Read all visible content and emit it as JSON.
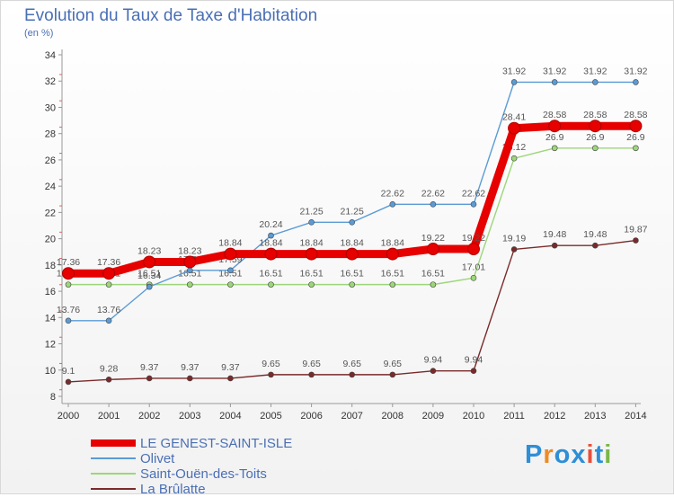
{
  "title": "Evolution du Taux de Taxe d'Habitation",
  "subtitle": "(en %)",
  "brand": {
    "letters": [
      "P",
      "r",
      "o",
      "x",
      "i",
      "t",
      "i"
    ],
    "colors": [
      "#2e8fd6",
      "#f08a24",
      "#2e8fd6",
      "#2e8fd6",
      "#e94f3a",
      "#2e8fd6",
      "#7ab648"
    ]
  },
  "chart_data": {
    "type": "line",
    "x": [
      "2000",
      "2001",
      "2002",
      "2003",
      "2004",
      "2005",
      "2006",
      "2007",
      "2008",
      "2009",
      "2010",
      "2011",
      "2012",
      "2013",
      "2014"
    ],
    "ylim": [
      8,
      34
    ],
    "yticks": [
      "8",
      "10",
      "12",
      "14",
      "16",
      "18",
      "20",
      "22",
      "24",
      "26",
      "28",
      "30",
      "32",
      "34"
    ],
    "grid": false,
    "legend_position": "bottom-left",
    "series": [
      {
        "name": "LE GENEST-SAINT-ISLE",
        "color": "#e60000",
        "values": [
          17.36,
          17.36,
          18.23,
          18.23,
          18.84,
          18.84,
          18.84,
          18.84,
          18.84,
          19.22,
          19.22,
          28.41,
          28.58,
          28.58,
          28.58
        ],
        "labels": [
          "17.36",
          "17.36",
          "18.23",
          "18.23",
          "18.84",
          "18.84",
          "18.84",
          "18.84",
          "18.84",
          "19.22",
          "19.22",
          "28.41",
          "28.58",
          "28.58",
          "28.58"
        ]
      },
      {
        "name": "Olivet",
        "color": "#5b9bd5",
        "values": [
          13.76,
          13.76,
          16.34,
          17.59,
          17.59,
          20.24,
          21.25,
          21.25,
          22.62,
          22.62,
          22.62,
          31.92,
          31.92,
          31.92,
          31.92
        ],
        "labels": [
          "13.76",
          "13.76",
          "16.34",
          "17.59",
          "17.59",
          "20.24",
          "21.25",
          "21.25",
          "22.62",
          "22.62",
          "22.62",
          "31.92",
          "31.92",
          "31.92",
          "31.92"
        ]
      },
      {
        "name": "Saint-Ouën-des-Toits",
        "color": "#9dd67a",
        "values": [
          16.51,
          16.51,
          16.51,
          16.51,
          16.51,
          16.51,
          16.51,
          16.51,
          16.51,
          16.51,
          17.01,
          26.12,
          26.9,
          26.9,
          26.9
        ],
        "labels": [
          "16.51",
          "16.51",
          "16.51",
          "16.51",
          "16.51",
          "16.51",
          "16.51",
          "16.51",
          "16.51",
          "16.51",
          "17.01",
          "26.12",
          "26.9",
          "26.9",
          "26.9"
        ]
      },
      {
        "name": "La Brûlatte",
        "color": "#7a2a2a",
        "values": [
          9.1,
          9.28,
          9.37,
          9.37,
          9.37,
          9.65,
          9.65,
          9.65,
          9.65,
          9.94,
          9.94,
          19.19,
          19.48,
          19.48,
          19.87
        ],
        "labels": [
          "9.1",
          "9.28",
          "9.37",
          "9.37",
          "9.37",
          "9.65",
          "9.65",
          "9.65",
          "9.65",
          "9.94",
          "9.94",
          "19.19",
          "19.48",
          "19.48",
          "19.87"
        ]
      }
    ]
  }
}
